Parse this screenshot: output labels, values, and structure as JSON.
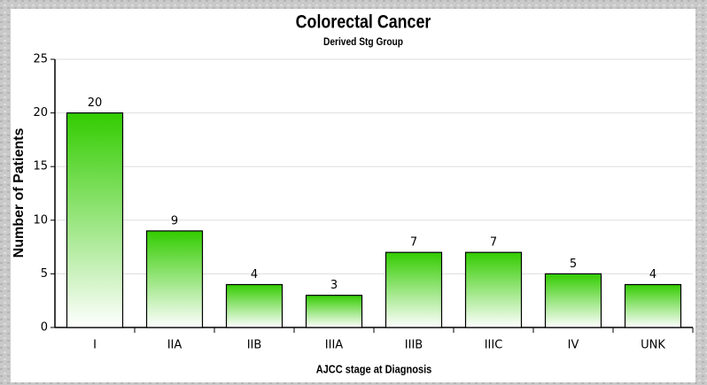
{
  "chart_data": {
    "type": "bar",
    "title": "Colorectal Cancer",
    "subtitle": "Derived Stg Group",
    "x_label": "AJCC stage at Diagnosis",
    "y_label": "Number of Patients",
    "categories": [
      "I",
      "IIA",
      "IIB",
      "IIIA",
      "IIIB",
      "IIIC",
      "IV",
      "UNK"
    ],
    "values": [
      20,
      9,
      4,
      3,
      7,
      7,
      5,
      4
    ],
    "color": "#33cc00",
    "ylim": [
      0,
      25
    ],
    "yticks": [
      0,
      5,
      10,
      15,
      20,
      25
    ],
    "grid": true
  }
}
